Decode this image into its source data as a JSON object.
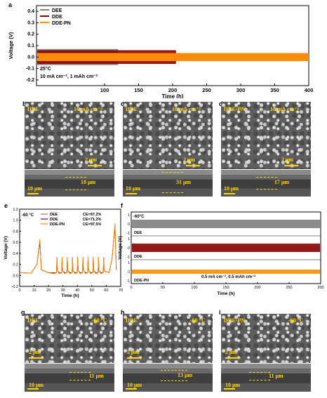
{
  "panels": {
    "a": "a",
    "b": "b",
    "c": "c",
    "d": "d",
    "e": "e",
    "f": "f",
    "g": "g",
    "h": "h",
    "i": "i"
  },
  "chart_a": {
    "chart_data": {
      "type": "line",
      "ylabel": "Voltage (V)",
      "xlabel": "Time (h)",
      "xlim": [
        0,
        400
      ],
      "ylim": [
        -0.25,
        0.45
      ],
      "xticks": [
        "100",
        "150",
        "200",
        "250",
        "300",
        "350",
        "400"
      ],
      "yticks": [
        "0.4",
        "0.3",
        "0.2",
        "0.1",
        "0.0",
        "-0.1",
        "-0.2"
      ],
      "series": [
        {
          "name": "DEE",
          "color": "#7f7f7f",
          "end_h": 120,
          "amplitude": 0.07
        },
        {
          "name": "DDE",
          "color": "#8b0000",
          "end_h": 205,
          "amplitude": 0.06
        },
        {
          "name": "DDE-PN",
          "color": "#ff8c00",
          "end_h": 400,
          "amplitude": 0.035
        }
      ],
      "annotation_temp": "25°C",
      "annotation_cond": "10 mA cm⁻², 1 mAh cm⁻²"
    }
  },
  "sem_b": {
    "title": "DEE",
    "cond": "10 mA cm⁻²",
    "scale_top": "2 μm",
    "scale_bot": "10 μm",
    "thickness": "18 μm"
  },
  "sem_c": {
    "title": "DDE",
    "cond": "10 mA cm⁻²",
    "scale_top": "2 μm",
    "scale_bot": "10 μm",
    "thickness": "31 μm"
  },
  "sem_d": {
    "title": "DDE-PN",
    "cond": "10 mA cm⁻²",
    "scale_top": "2 μm",
    "scale_bot": "10 μm",
    "thickness": "17 μm"
  },
  "chart_e": {
    "chart_data": {
      "type": "line",
      "ylabel": "Voltage (V)",
      "xlabel": "Time (h)",
      "xlim": [
        0,
        70
      ],
      "ylim": [
        -0.1,
        1.2
      ],
      "xticks": [
        "0",
        "10",
        "20",
        "30",
        "40",
        "50",
        "60",
        "70"
      ],
      "yticks": [
        "1.2",
        "1.0",
        "0.8",
        "0.6",
        "0.4",
        "0.2",
        "0.0",
        "-0.2"
      ],
      "temp": "-60 °C",
      "series": [
        {
          "name": "DEE",
          "ce": "CE=97.2%",
          "color": "#7f7f7f"
        },
        {
          "name": "DDE",
          "ce": "CE=71.2%",
          "color": "#8b0000"
        },
        {
          "name": "DDE-PN",
          "ce": "CE=97.5%",
          "color": "#ff8c00"
        }
      ]
    }
  },
  "chart_f": {
    "chart_data": {
      "type": "line",
      "ylabel": "Voltage (V)",
      "xlabel": "Time (h)",
      "xlim": [
        0,
        300
      ],
      "xticks": [
        "0",
        "50",
        "100",
        "150",
        "200",
        "250",
        "300"
      ],
      "temp": "-60°C",
      "cond": "0.5 mA cm⁻², 0.5 mAh cm⁻²",
      "series": [
        {
          "name": "DEE",
          "color": "#7f7f7f"
        },
        {
          "name": "DDE",
          "color": "#8b0000"
        },
        {
          "name": "DDE-PN",
          "color": "#ff8c00"
        }
      ],
      "subplot_yticks": [
        "1",
        "0",
        "-1"
      ]
    }
  },
  "sem_g": {
    "title": "DEE",
    "cond": "-60 °C",
    "scale_top": "2 μm",
    "scale_bot": "10 μm",
    "thickness": "11 μm"
  },
  "sem_h": {
    "title": "DDE",
    "cond": "-60 °C",
    "scale_top": "2 μm",
    "scale_bot": "10 μm",
    "thickness": "13 μm"
  },
  "sem_i": {
    "title": "DDE-PN",
    "cond": "-60 °C",
    "scale_top": "2 μm",
    "scale_bot": "10 μm",
    "thickness": "11 μm"
  }
}
